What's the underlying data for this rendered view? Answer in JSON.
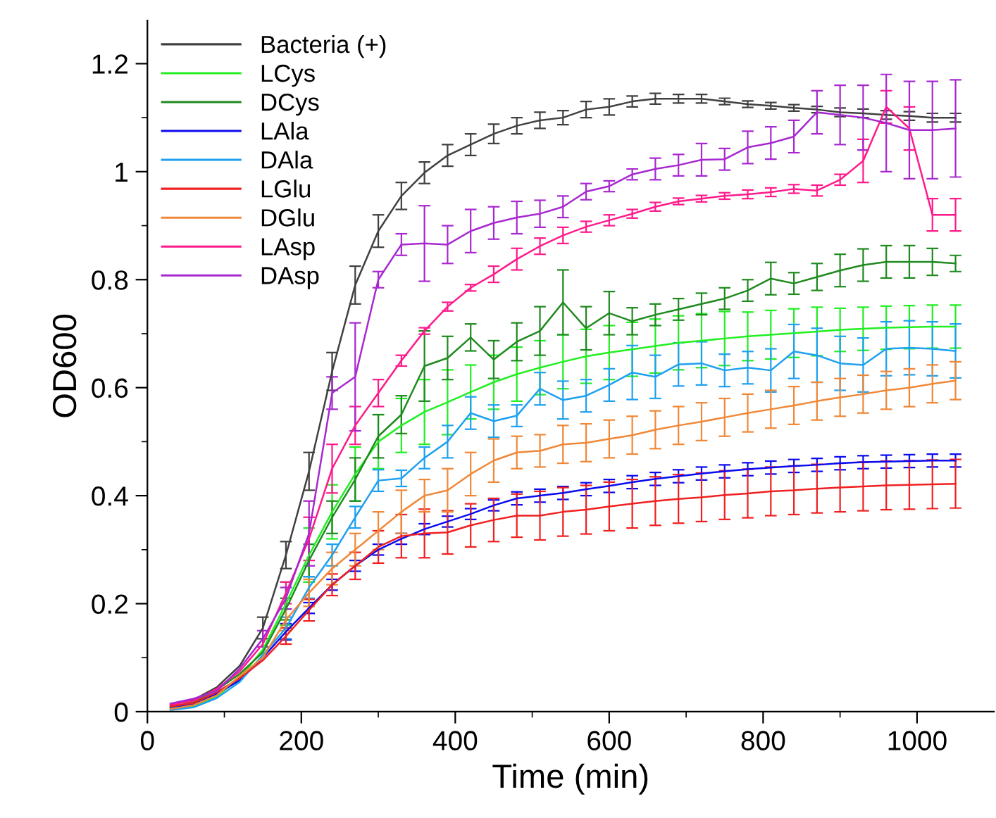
{
  "chart_data": {
    "type": "line",
    "xlabel": "Time (min)",
    "ylabel": "OD600",
    "xlim": [
      0,
      1100
    ],
    "ylim": [
      0,
      1.28
    ],
    "xticks": [
      0,
      {
        "value": 100,
        "label": null
      },
      200,
      {
        "value": 300,
        "label": null
      },
      400,
      {
        "value": 500,
        "label": null
      },
      600,
      {
        "value": 700,
        "label": null
      },
      800,
      {
        "value": 900,
        "label": null
      },
      1000
    ],
    "yticks": [
      0,
      {
        "value": 0.1,
        "label": null
      },
      0.2,
      {
        "value": 0.3,
        "label": null
      },
      0.4,
      {
        "value": 0.5,
        "label": null
      },
      0.6,
      {
        "value": 0.7,
        "label": null
      },
      0.8,
      {
        "value": 0.9,
        "label": null
      },
      1,
      {
        "value": 1.1,
        "label": null
      },
      1.2
    ],
    "grid": false,
    "legend": "top left",
    "marker": "none",
    "line_style": "solid",
    "x": [
      30,
      60,
      90,
      120,
      150,
      180,
      210,
      240,
      270,
      300,
      330,
      360,
      390,
      420,
      450,
      480,
      510,
      540,
      570,
      600,
      630,
      660,
      690,
      720,
      750,
      780,
      810,
      840,
      870,
      900,
      930,
      960,
      990,
      1020,
      1050
    ],
    "series": [
      {
        "name": "Bacteria (+)",
        "color": "#404040",
        "values": [
          0.012,
          0.022,
          0.045,
          0.085,
          0.155,
          0.29,
          0.445,
          0.63,
          0.79,
          0.89,
          0.955,
          0.998,
          1.03,
          1.05,
          1.07,
          1.085,
          1.095,
          1.1,
          1.115,
          1.12,
          1.13,
          1.135,
          1.135,
          1.135,
          1.13,
          1.125,
          1.122,
          1.118,
          1.115,
          1.11,
          1.108,
          1.105,
          1.103,
          1.1,
          1.1
        ],
        "errors": [
          null,
          null,
          null,
          null,
          0.02,
          0.025,
          0.035,
          0.035,
          0.035,
          0.03,
          0.025,
          0.02,
          0.02,
          0.02,
          0.018,
          0.015,
          0.015,
          0.013,
          0.015,
          0.015,
          0.01,
          0.01,
          0.008,
          0.008,
          0.006,
          0.006,
          0.006,
          0.006,
          0.006,
          0.008,
          0.008,
          0.008,
          0.008,
          0.008,
          0.008
        ]
      },
      {
        "name": "LCys",
        "color": "#22ee22",
        "values": [
          0.004,
          0.01,
          0.028,
          0.063,
          0.115,
          0.2,
          0.29,
          0.37,
          0.44,
          0.5,
          0.53,
          0.555,
          0.573,
          0.592,
          0.61,
          0.625,
          0.637,
          0.648,
          0.658,
          0.665,
          0.671,
          0.677,
          0.683,
          0.687,
          0.691,
          0.695,
          0.698,
          0.701,
          0.704,
          0.707,
          0.709,
          0.711,
          0.712,
          0.713,
          0.713
        ],
        "errors": [
          null,
          null,
          null,
          null,
          null,
          0.04,
          0.05,
          0.05,
          0.05,
          0.05,
          0.05,
          0.06,
          0.06,
          0.05,
          0.05,
          0.05,
          0.05,
          0.05,
          0.05,
          0.05,
          0.05,
          0.05,
          0.05,
          0.05,
          0.05,
          0.045,
          0.045,
          0.045,
          0.045,
          0.04,
          0.04,
          0.04,
          0.04,
          0.04,
          0.04
        ]
      },
      {
        "name": "DCys",
        "color": "#1f8a1f",
        "values": [
          0.008,
          0.018,
          0.04,
          0.07,
          0.11,
          0.19,
          0.28,
          0.36,
          0.43,
          0.51,
          0.55,
          0.64,
          0.655,
          0.693,
          0.652,
          0.685,
          0.705,
          0.758,
          0.71,
          0.738,
          0.723,
          0.735,
          0.745,
          0.755,
          0.765,
          0.78,
          0.802,
          0.793,
          0.805,
          0.817,
          0.827,
          0.833,
          0.833,
          0.833,
          0.83
        ],
        "errors": [
          null,
          null,
          null,
          null,
          null,
          0.02,
          0.03,
          0.03,
          0.04,
          0.04,
          0.035,
          0.065,
          0.04,
          0.025,
          0.035,
          0.035,
          0.045,
          0.06,
          0.04,
          0.04,
          0.025,
          0.02,
          0.02,
          0.02,
          0.02,
          0.02,
          0.03,
          0.02,
          0.025,
          0.03,
          0.03,
          0.03,
          0.03,
          0.025,
          0.015
        ]
      },
      {
        "name": "LAla",
        "color": "#0a0aee",
        "values": [
          0.006,
          0.014,
          0.033,
          0.058,
          0.1,
          0.148,
          0.192,
          0.235,
          0.27,
          0.3,
          0.32,
          0.338,
          0.352,
          0.366,
          0.382,
          0.395,
          0.4,
          0.405,
          0.412,
          0.418,
          0.425,
          0.431,
          0.436,
          0.441,
          0.445,
          0.449,
          0.452,
          0.455,
          0.457,
          0.46,
          0.462,
          0.463,
          0.464,
          0.465,
          0.465
        ],
        "errors": [
          null,
          null,
          null,
          null,
          null,
          0.015,
          0.01,
          0.01,
          0.01,
          0.01,
          0.01,
          0.01,
          0.01,
          0.01,
          0.01,
          0.012,
          0.012,
          0.012,
          0.012,
          0.012,
          0.012,
          0.012,
          0.012,
          0.012,
          0.012,
          0.012,
          0.012,
          0.012,
          0.012,
          0.012,
          0.012,
          0.012,
          0.012,
          0.012,
          0.012
        ]
      },
      {
        "name": "DAla",
        "color": "#1ea0f0",
        "values": [
          0.003,
          0.008,
          0.025,
          0.055,
          0.105,
          0.155,
          0.23,
          0.29,
          0.36,
          0.428,
          0.432,
          0.47,
          0.5,
          0.553,
          0.538,
          0.548,
          0.598,
          0.577,
          0.585,
          0.605,
          0.628,
          0.62,
          0.643,
          0.645,
          0.632,
          0.637,
          0.632,
          0.667,
          0.66,
          0.645,
          0.642,
          0.672,
          0.674,
          0.672,
          0.668
        ],
        "errors": [
          null,
          null,
          null,
          null,
          null,
          0.02,
          0.02,
          0.02,
          0.02,
          0.02,
          0.015,
          0.02,
          0.03,
          0.03,
          0.03,
          0.02,
          0.03,
          0.035,
          0.03,
          0.03,
          0.05,
          0.04,
          0.04,
          0.04,
          0.03,
          0.03,
          0.04,
          0.05,
          0.05,
          0.05,
          0.05,
          0.05,
          0.05,
          0.05,
          0.05
        ]
      },
      {
        "name": "LGlu",
        "color": "#f02020",
        "values": [
          0.01,
          0.016,
          0.036,
          0.062,
          0.095,
          0.14,
          0.188,
          0.235,
          0.27,
          0.305,
          0.325,
          0.33,
          0.332,
          0.345,
          0.355,
          0.363,
          0.363,
          0.37,
          0.374,
          0.38,
          0.385,
          0.39,
          0.394,
          0.397,
          0.401,
          0.404,
          0.408,
          0.41,
          0.413,
          0.415,
          0.417,
          0.419,
          0.42,
          0.421,
          0.422
        ],
        "errors": [
          null,
          null,
          null,
          null,
          null,
          0.015,
          0.02,
          0.02,
          0.025,
          0.03,
          0.04,
          0.045,
          0.04,
          0.04,
          0.04,
          0.04,
          0.045,
          0.045,
          0.045,
          0.045,
          0.045,
          0.045,
          0.045,
          0.045,
          0.045,
          0.045,
          0.045,
          0.045,
          0.045,
          0.045,
          0.045,
          0.045,
          0.045,
          0.045,
          0.045
        ]
      },
      {
        "name": "DGlu",
        "color": "#f08838",
        "values": [
          0.005,
          0.012,
          0.03,
          0.066,
          0.1,
          0.17,
          0.22,
          0.265,
          0.3,
          0.335,
          0.37,
          0.4,
          0.41,
          0.44,
          0.465,
          0.48,
          0.483,
          0.495,
          0.498,
          0.505,
          0.512,
          0.522,
          0.53,
          0.537,
          0.545,
          0.553,
          0.56,
          0.567,
          0.575,
          0.582,
          0.588,
          0.595,
          0.6,
          0.607,
          0.613
        ],
        "errors": [
          null,
          null,
          null,
          null,
          null,
          0.02,
          0.025,
          0.03,
          0.03,
          0.035,
          0.04,
          0.03,
          0.04,
          0.04,
          0.04,
          0.03,
          0.03,
          0.035,
          0.035,
          0.035,
          0.035,
          0.035,
          0.035,
          0.035,
          0.035,
          0.035,
          0.035,
          0.035,
          0.035,
          0.035,
          0.035,
          0.035,
          0.035,
          0.035,
          0.035
        ]
      },
      {
        "name": "LAsp",
        "color": "#ff1a8c",
        "values": [
          0.013,
          0.02,
          0.042,
          0.075,
          0.125,
          0.22,
          0.32,
          0.45,
          0.53,
          0.59,
          0.65,
          0.705,
          0.75,
          0.785,
          0.81,
          0.838,
          0.862,
          0.882,
          0.898,
          0.91,
          0.922,
          0.935,
          0.945,
          0.95,
          0.955,
          0.958,
          0.962,
          0.968,
          0.965,
          0.985,
          1.02,
          1.12,
          1.08,
          0.92,
          0.92
        ],
        "errors": [
          null,
          null,
          null,
          null,
          null,
          0.02,
          0.04,
          0.045,
          0.035,
          0.025,
          0.01,
          0.006,
          0.008,
          0.006,
          0.015,
          0.02,
          0.015,
          0.015,
          0.01,
          0.01,
          0.008,
          0.008,
          0.006,
          0.006,
          0.006,
          0.008,
          0.008,
          0.008,
          0.01,
          0.01,
          0.04,
          0.03,
          0.04,
          0.03,
          0.03
        ]
      },
      {
        "name": "DAsp",
        "color": "#a828d0",
        "values": [
          0.015,
          0.024,
          0.038,
          0.08,
          0.135,
          0.21,
          0.33,
          0.59,
          0.62,
          0.8,
          0.865,
          0.867,
          0.865,
          0.89,
          0.905,
          0.915,
          0.922,
          0.935,
          0.963,
          0.973,
          0.995,
          1.005,
          1.012,
          1.022,
          1.023,
          1.045,
          1.053,
          1.065,
          1.11,
          1.105,
          1.1,
          1.09,
          1.077,
          1.077,
          1.08
        ],
        "errors": [
          null,
          null,
          null,
          null,
          0.015,
          0.02,
          0.06,
          0.03,
          0.1,
          0.015,
          0.02,
          0.07,
          0.035,
          0.04,
          0.03,
          0.03,
          0.025,
          0.02,
          0.015,
          0.01,
          0.01,
          0.02,
          0.02,
          0.03,
          0.02,
          0.03,
          0.03,
          0.03,
          0.04,
          0.055,
          0.06,
          0.09,
          0.09,
          0.09,
          0.09
        ]
      }
    ]
  }
}
